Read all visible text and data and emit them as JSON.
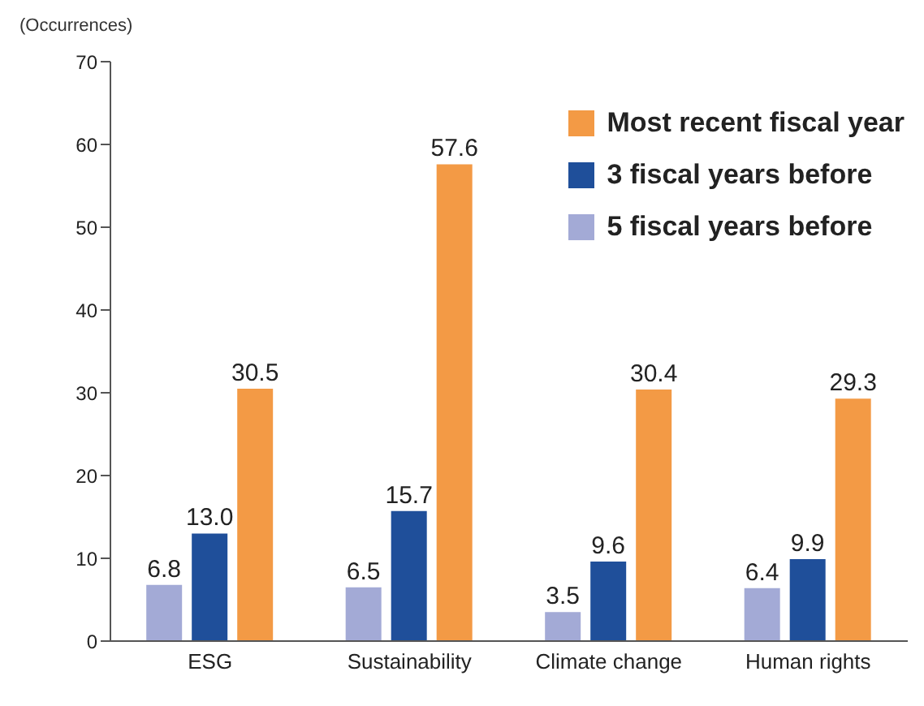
{
  "chart_data": {
    "type": "bar",
    "ylabel": "(Occurrences)",
    "categories": [
      "ESG",
      "Sustainability",
      "Climate change",
      "Human rights"
    ],
    "series": [
      {
        "name": "Most recent fiscal year",
        "color": "#f39a45",
        "values": [
          30.5,
          57.6,
          30.4,
          29.3
        ],
        "value_labels": [
          "30.5",
          "57.6",
          "30.4",
          "29.3"
        ]
      },
      {
        "name": "3 fiscal years before",
        "color": "#1f4f9a",
        "values": [
          13,
          15.7,
          9.6,
          9.9
        ],
        "value_labels": [
          "13.0",
          "15.7",
          "9.6",
          "9.9"
        ]
      },
      {
        "name": "5 fiscal years before",
        "color": "#a3aad6",
        "values": [
          6.8,
          6.5,
          3.5,
          6.4
        ],
        "value_labels": [
          "6.8",
          "6.5",
          "3.5",
          "6.4"
        ]
      }
    ],
    "ylim": [
      0,
      70
    ],
    "yticks": [
      0,
      10,
      20,
      30,
      40,
      50,
      60,
      70
    ],
    "grid": false,
    "legend": "top right"
  }
}
